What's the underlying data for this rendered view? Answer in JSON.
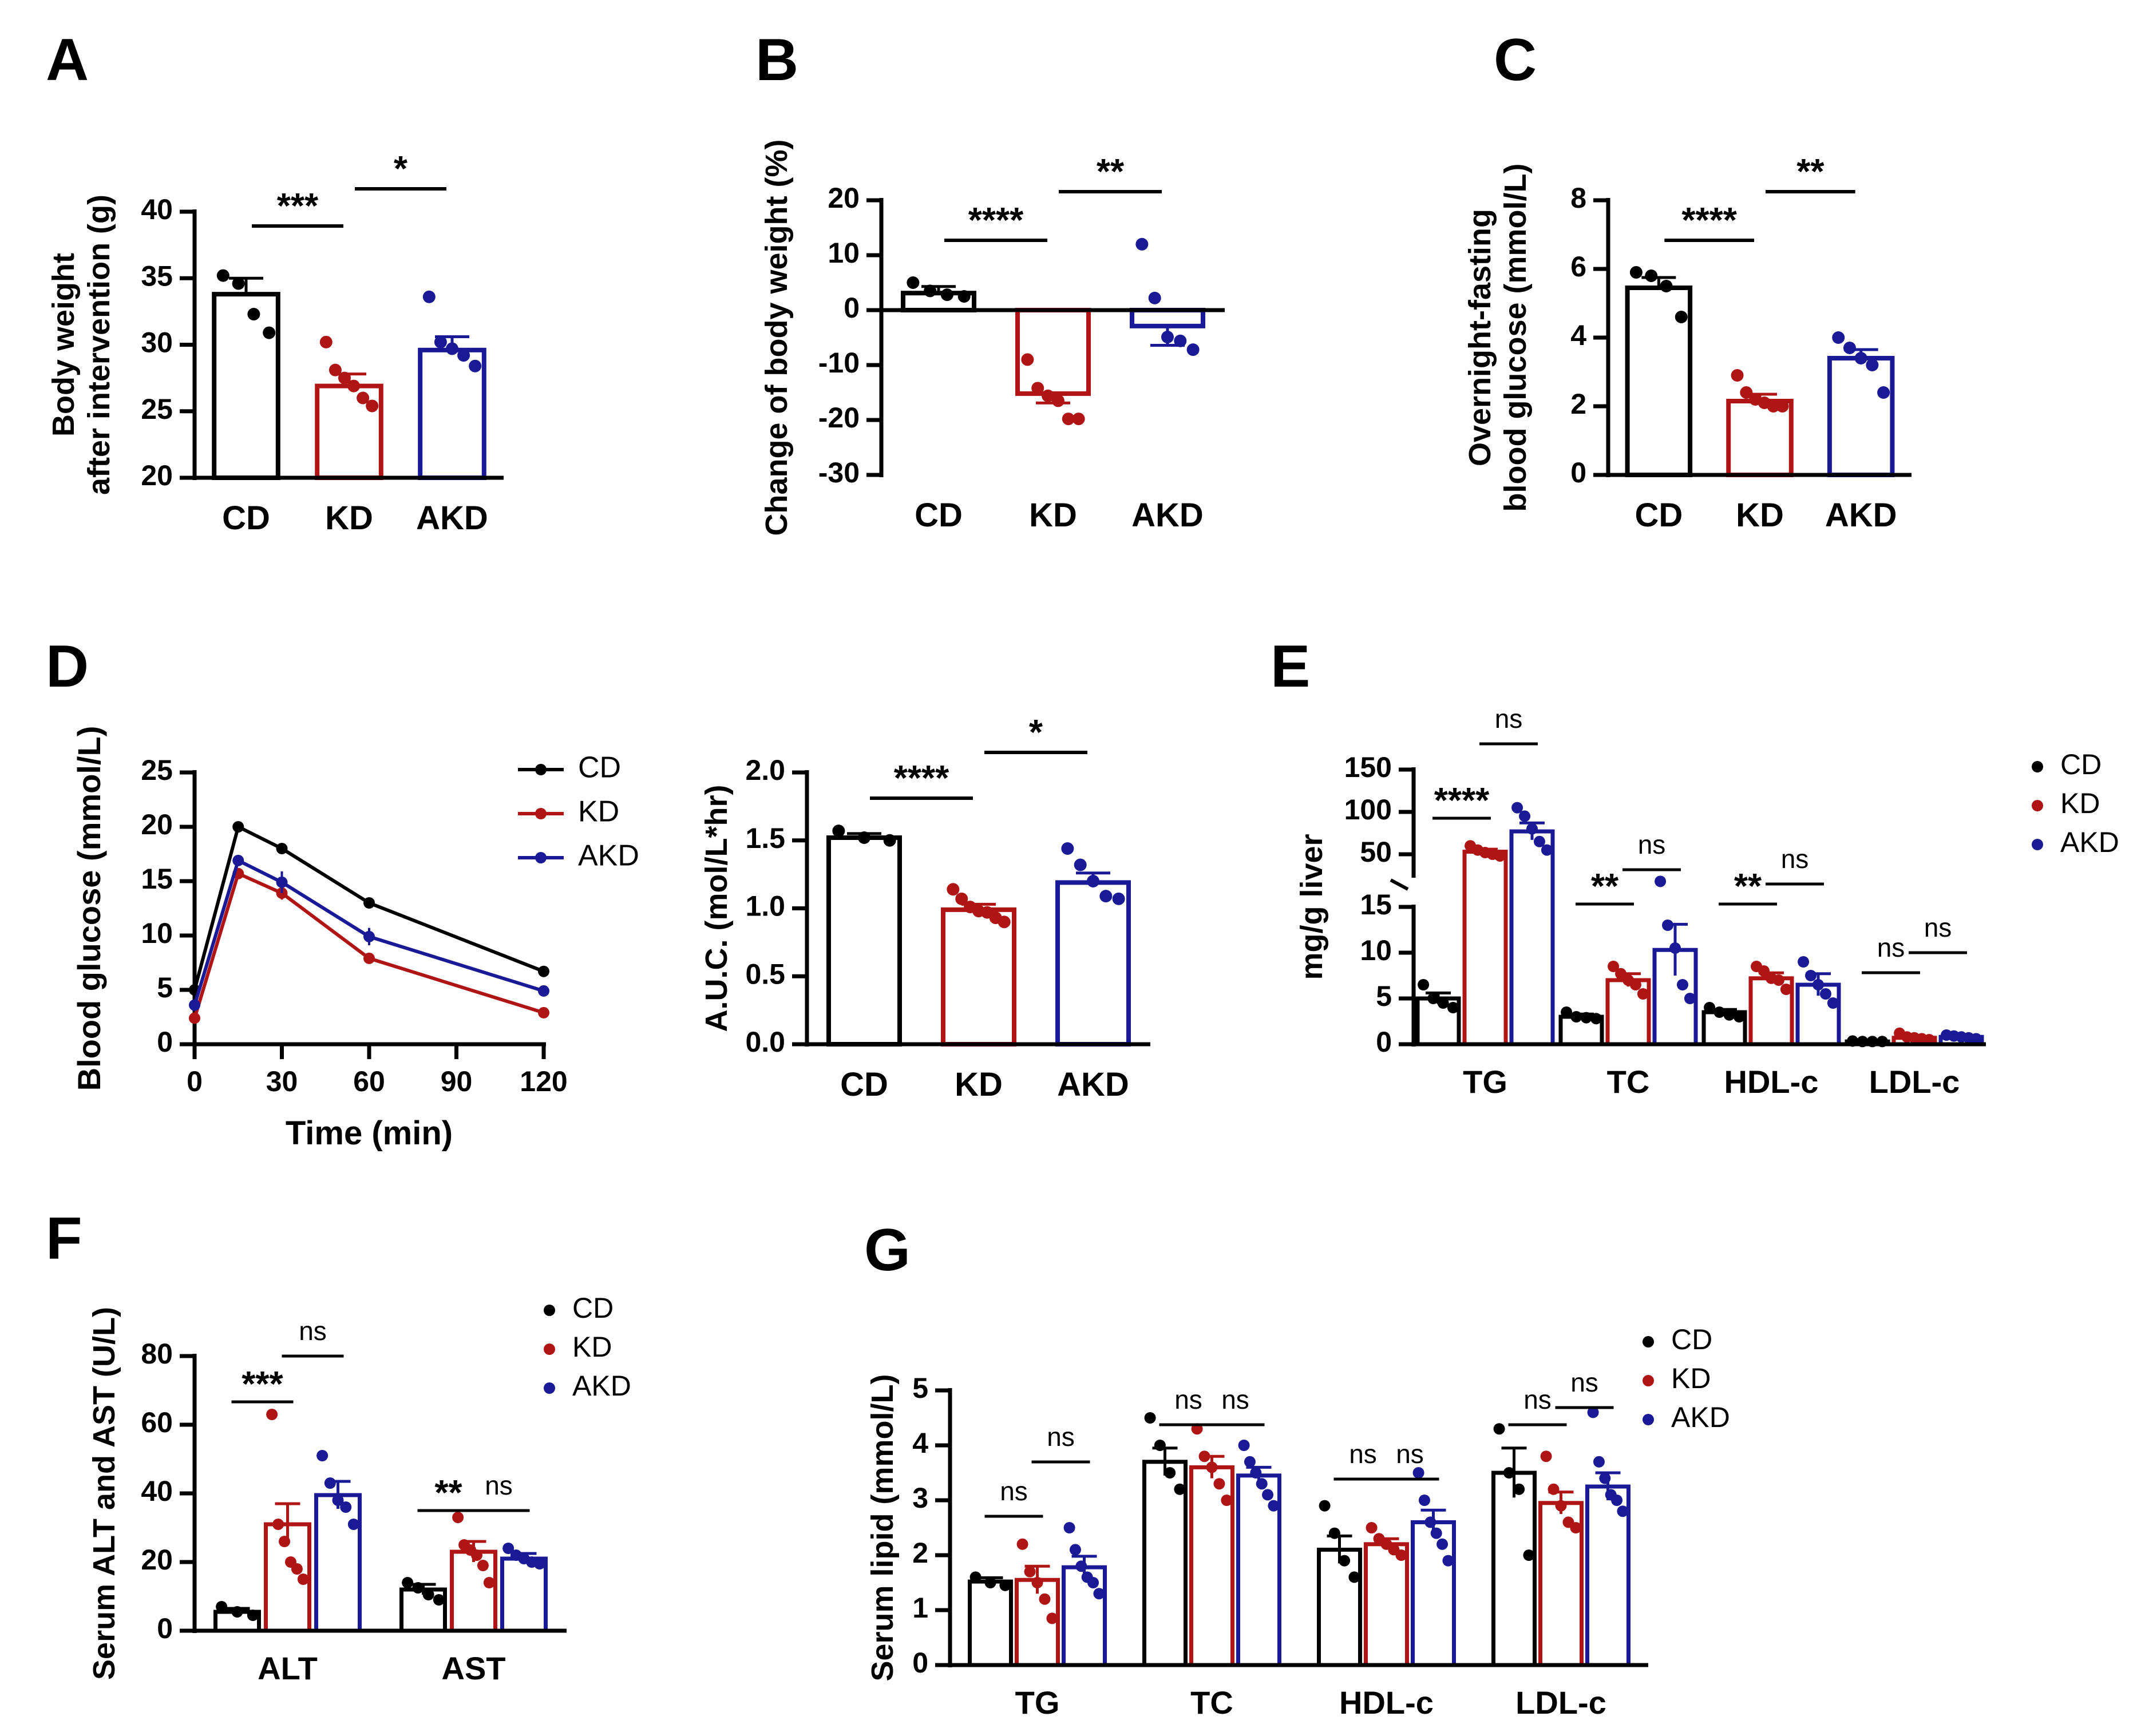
{
  "figure": {
    "panel_letters": [
      "A",
      "B",
      "C",
      "D",
      "E",
      "F",
      "G"
    ]
  },
  "colors": {
    "CD": "#000000",
    "KD": "#b01515",
    "AKD": "#1a1a96",
    "axis": "#000000"
  },
  "chart_data": [
    {
      "id": "A",
      "type": "bar",
      "panel_letter": "A",
      "ylabel_lines": [
        "Body weight",
        "after intervention (g)"
      ],
      "categories": [
        "CD",
        "KD",
        "AKD"
      ],
      "values": [
        33.8,
        26.9,
        29.6
      ],
      "errors": [
        1.2,
        0.9,
        1.0
      ],
      "points": [
        [
          35.2,
          34.6,
          32.3,
          30.9
        ],
        [
          30.2,
          28.1,
          27.5,
          26.9,
          26.0,
          25.4
        ],
        [
          33.6,
          30.2,
          29.7,
          29.2,
          28.4
        ]
      ],
      "yticks": [
        20,
        25,
        30,
        35,
        40
      ],
      "ylim": [
        20,
        40
      ],
      "sig": [
        {
          "from": 0,
          "to": 1,
          "label": "***"
        },
        {
          "from": 1,
          "to": 2,
          "label": "*"
        }
      ]
    },
    {
      "id": "B",
      "type": "bar",
      "panel_letter": "B",
      "ylabel_lines": [
        "Change of body weight (%)"
      ],
      "categories": [
        "CD",
        "KD",
        "AKD"
      ],
      "values": [
        3.1,
        -15.2,
        -2.9
      ],
      "errors": [
        1.2,
        1.7,
        3.5
      ],
      "points": [
        [
          5.0,
          3.5,
          2.8,
          2.5
        ],
        [
          -9.0,
          -14.2,
          -15.6,
          -16.5,
          -19.8,
          -19.8
        ],
        [
          12.0,
          2.2,
          -4.9,
          -5.6,
          -7.2
        ]
      ],
      "yticks": [
        -30,
        -20,
        -10,
        0,
        10,
        20
      ],
      "ylim": [
        -30,
        20
      ],
      "sig": [
        {
          "from": 0,
          "to": 1,
          "label": "****"
        },
        {
          "from": 1,
          "to": 2,
          "label": "**"
        }
      ]
    },
    {
      "id": "C",
      "type": "bar",
      "panel_letter": "C",
      "ylabel_lines": [
        "Overnight-fasting",
        "blood glucose (mmol/L)"
      ],
      "categories": [
        "CD",
        "KD",
        "AKD"
      ],
      "values": [
        5.45,
        2.15,
        3.4
      ],
      "errors": [
        0.3,
        0.2,
        0.25
      ],
      "points": [
        [
          5.9,
          5.8,
          5.5,
          4.6
        ],
        [
          2.9,
          2.4,
          2.2,
          2.1,
          2.0,
          2.0
        ],
        [
          4.0,
          3.7,
          3.4,
          3.2,
          2.4
        ]
      ],
      "yticks": [
        0,
        2,
        4,
        6,
        8
      ],
      "ylim": [
        0,
        8
      ],
      "sig": [
        {
          "from": 0,
          "to": 1,
          "label": "****"
        },
        {
          "from": 1,
          "to": 2,
          "label": "**"
        }
      ]
    },
    {
      "id": "D1",
      "type": "line",
      "panel_letter": "D",
      "xlabel": "Time (min)",
      "ylabel": "Blood glucose (mmol/L)",
      "x": [
        0,
        15,
        30,
        60,
        120
      ],
      "xticks": [
        0,
        30,
        60,
        90,
        120
      ],
      "xlim": [
        0,
        120
      ],
      "yticks": [
        0,
        5,
        10,
        15,
        20,
        25
      ],
      "ylim": [
        0,
        25
      ],
      "series": [
        {
          "name": "CD",
          "values": [
            5.0,
            20.0,
            18.0,
            13.0,
            6.7
          ],
          "errors": [
            0.2,
            0.3,
            0.4,
            0.3,
            0.2
          ]
        },
        {
          "name": "KD",
          "values": [
            2.4,
            15.7,
            13.9,
            7.9,
            2.9
          ],
          "errors": [
            0.2,
            0.4,
            0.6,
            0.3,
            0.2
          ]
        },
        {
          "name": "AKD",
          "values": [
            3.6,
            16.9,
            14.9,
            9.9,
            4.9
          ],
          "errors": [
            0.3,
            0.4,
            1.0,
            0.8,
            0.3
          ]
        }
      ],
      "legend": [
        "CD",
        "KD",
        "AKD"
      ]
    },
    {
      "id": "D2",
      "type": "bar",
      "ylabel_lines": [
        "A.U.C. (mol/L*hr)"
      ],
      "categories": [
        "CD",
        "KD",
        "AKD"
      ],
      "values": [
        1.52,
        0.99,
        1.19
      ],
      "errors": [
        0.03,
        0.04,
        0.07
      ],
      "points": [
        [
          1.57,
          1.52,
          1.5
        ],
        [
          1.14,
          1.07,
          1.01,
          0.98,
          0.97,
          0.93,
          0.9
        ],
        [
          1.44,
          1.32,
          1.2,
          1.09,
          1.07
        ]
      ],
      "yticks": [
        "0.0",
        "0.5",
        "1.0",
        "1.5",
        "2.0"
      ],
      "ylim": [
        0,
        2.0
      ],
      "sig": [
        {
          "from": 0,
          "to": 1,
          "label": "****"
        },
        {
          "from": 1,
          "to": 2,
          "label": "*"
        }
      ]
    },
    {
      "id": "E",
      "type": "bar",
      "panel_letter": "E",
      "ylabel_lines": [
        "mg/g liver"
      ],
      "broken_axis": true,
      "categories": [
        "TG",
        "TC",
        "HDL-c",
        "LDL-c"
      ],
      "groups": [
        "CD",
        "KD",
        "AKD"
      ],
      "values": [
        [
          5.0,
          53.0,
          77.0
        ],
        [
          3.0,
          7.0,
          10.3
        ],
        [
          3.5,
          7.2,
          6.5
        ],
        [
          0.3,
          0.7,
          0.8
        ]
      ],
      "errors": [
        [
          0.6,
          3.0,
          10.0
        ],
        [
          0.3,
          0.7,
          2.8
        ],
        [
          0.3,
          0.6,
          1.2
        ],
        [
          0.05,
          0.1,
          0.1
        ]
      ],
      "points": [
        [
          [
            6.5,
            5.0,
            4.5,
            4.0
          ],
          [
            60.0,
            55.0,
            52.0,
            50.0,
            48.0
          ],
          [
            105.0,
            95.0,
            80.0,
            65.0,
            55.0
          ]
        ],
        [
          [
            3.5,
            3.0,
            2.9,
            2.8
          ],
          [
            8.5,
            7.7,
            7.0,
            6.5,
            5.5
          ],
          [
            18.0,
            13.0,
            10.5,
            6.5,
            5.0
          ]
        ],
        [
          [
            4.0,
            3.5,
            3.2,
            3.0
          ],
          [
            8.5,
            8.0,
            7.2,
            7.0,
            6.0
          ],
          [
            9.0,
            7.5,
            6.5,
            5.5,
            4.5
          ]
        ],
        [
          [
            0.35,
            0.3,
            0.3,
            0.3
          ],
          [
            1.2,
            0.8,
            0.7,
            0.6,
            0.5
          ],
          [
            1.0,
            0.9,
            0.8,
            0.7,
            0.6
          ]
        ]
      ],
      "yticks_lower": [
        0,
        5,
        10,
        15
      ],
      "yticks_upper": [
        50,
        100,
        150
      ],
      "ylim_lower": [
        0,
        15
      ],
      "ylim_upper": [
        25,
        150
      ],
      "legend": [
        "CD",
        "KD",
        "AKD"
      ],
      "sig": [
        {
          "cat": 0,
          "from": 0,
          "to": 1,
          "label": "****"
        },
        {
          "cat": 0,
          "from": 1,
          "to": 2,
          "label": "ns"
        },
        {
          "cat": 1,
          "from": 0,
          "to": 1,
          "label": "**"
        },
        {
          "cat": 1,
          "from": 1,
          "to": 2,
          "label": "ns"
        },
        {
          "cat": 2,
          "from": 0,
          "to": 1,
          "label": "**"
        },
        {
          "cat": 2,
          "from": 1,
          "to": 2,
          "label": "ns"
        },
        {
          "cat": 3,
          "from": 0,
          "to": 1,
          "label": "ns"
        },
        {
          "cat": 3,
          "from": 1,
          "to": 2,
          "label": "ns"
        }
      ]
    },
    {
      "id": "F",
      "type": "bar",
      "panel_letter": "F",
      "ylabel_lines": [
        "Serum ALT and AST (U/L)"
      ],
      "categories": [
        "ALT",
        "AST"
      ],
      "groups": [
        "CD",
        "KD",
        "AKD"
      ],
      "values": [
        [
          5.5,
          31.0,
          39.5
        ],
        [
          12.0,
          23.0,
          21.0
        ]
      ],
      "errors": [
        [
          1.0,
          6.0,
          4.0
        ],
        [
          1.5,
          3.0,
          1.5
        ]
      ],
      "points": [
        [
          [
            7.0,
            5.5,
            4.5
          ],
          [
            63.0,
            31.0,
            26.0,
            20.0,
            18.0,
            15.0
          ],
          [
            51.0,
            43.0,
            38.0,
            36.0,
            31.0
          ]
        ],
        [
          [
            14.0,
            12.5,
            10.5,
            9.0
          ],
          [
            33.0,
            25.0,
            23.5,
            22.0,
            19.0,
            14.0
          ],
          [
            24.0,
            22.0,
            21.0,
            20.0,
            19.5
          ]
        ]
      ],
      "yticks": [
        0,
        20,
        40,
        60,
        80
      ],
      "ylim": [
        0,
        80
      ],
      "legend": [
        "CD",
        "KD",
        "AKD"
      ],
      "sig": [
        {
          "cat": 0,
          "from": 0,
          "to": 1,
          "label": "***"
        },
        {
          "cat": 0,
          "from": 1,
          "to": 2,
          "label": "ns"
        },
        {
          "cat": 1,
          "from": 0,
          "to": 1,
          "label": "**"
        },
        {
          "cat": 1,
          "from": 1,
          "to": 2,
          "label": "ns"
        }
      ]
    },
    {
      "id": "G",
      "type": "bar",
      "panel_letter": "G",
      "ylabel_lines": [
        "Serum lipid (mmol/L)"
      ],
      "categories": [
        "TG",
        "TC",
        "HDL-c",
        "LDL-c"
      ],
      "groups": [
        "CD",
        "KD",
        "AKD"
      ],
      "values": [
        [
          1.52,
          1.55,
          1.78
        ],
        [
          3.7,
          3.6,
          3.45
        ],
        [
          2.1,
          2.2,
          2.6
        ],
        [
          3.5,
          2.95,
          3.25
        ]
      ],
      "errors": [
        [
          0.07,
          0.25,
          0.2
        ],
        [
          0.25,
          0.2,
          0.15
        ],
        [
          0.25,
          0.1,
          0.22
        ],
        [
          0.45,
          0.2,
          0.25
        ]
      ],
      "points": [
        [
          [
            1.6,
            1.5,
            1.45
          ],
          [
            2.2,
            1.7,
            1.5,
            1.2,
            0.85
          ],
          [
            2.5,
            2.1,
            1.8,
            1.6,
            1.5,
            1.3
          ]
        ],
        [
          [
            4.5,
            4.0,
            3.5,
            3.2
          ],
          [
            4.3,
            3.8,
            3.6,
            3.3,
            3.0
          ],
          [
            4.0,
            3.7,
            3.5,
            3.3,
            3.1,
            2.9
          ]
        ],
        [
          [
            2.9,
            2.4,
            1.9,
            1.6
          ],
          [
            2.5,
            2.3,
            2.2,
            2.1,
            2.0
          ],
          [
            3.5,
            3.0,
            2.6,
            2.4,
            2.2,
            1.9
          ]
        ],
        [
          [
            4.3,
            3.5,
            3.2,
            2.0
          ],
          [
            3.8,
            3.2,
            2.9,
            2.6,
            2.5
          ],
          [
            4.6,
            3.7,
            3.4,
            3.1,
            3.0,
            2.8
          ]
        ]
      ],
      "yticks": [
        0,
        1,
        2,
        3,
        4,
        5
      ],
      "ylim": [
        0,
        5
      ],
      "legend": [
        "CD",
        "KD",
        "AKD"
      ],
      "sig": [
        {
          "cat": 0,
          "from": 0,
          "to": 1,
          "label": "ns"
        },
        {
          "cat": 0,
          "from": 1,
          "to": 2,
          "label": "ns"
        },
        {
          "cat": 1,
          "from": 0,
          "to": 1,
          "label": "ns"
        },
        {
          "cat": 1,
          "from": 1,
          "to": 2,
          "label": "ns"
        },
        {
          "cat": 2,
          "from": 0,
          "to": 1,
          "label": "ns"
        },
        {
          "cat": 2,
          "from": 1,
          "to": 2,
          "label": "ns"
        },
        {
          "cat": 3,
          "from": 0,
          "to": 1,
          "label": "ns"
        },
        {
          "cat": 3,
          "from": 1,
          "to": 2,
          "label": "ns"
        }
      ]
    }
  ]
}
